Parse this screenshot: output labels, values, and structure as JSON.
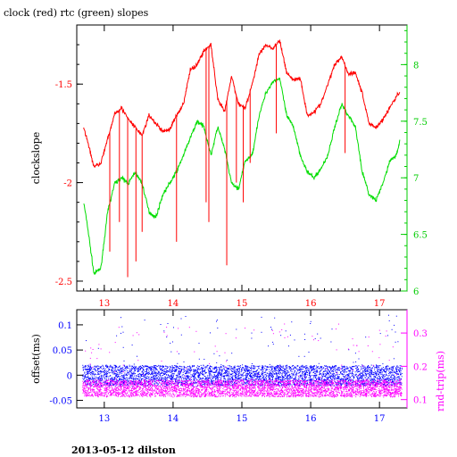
{
  "header": {
    "title": "clock (red) rtc (green) slopes"
  },
  "footer": {
    "caption": "2013-05-12 dilston"
  },
  "colors": {
    "red": "#ff0000",
    "green": "#00dd00",
    "blue": "#0000ff",
    "magenta": "#ff00ff",
    "axis_black": "#000000"
  },
  "chart_data": [
    {
      "type": "line",
      "title": "clock (red) rtc (green) slopes",
      "xlim": [
        12.6,
        17.4
      ],
      "x_ticks": [
        "13",
        "14",
        "15",
        "16",
        "17"
      ],
      "x_tick_color": "#ff0000",
      "ylabel": "clockslope",
      "ylim": [
        -2.55,
        -1.2
      ],
      "y_ticks": [
        "-1.5",
        "-2",
        "-2.5"
      ],
      "y_tick_color": "#ff0000",
      "ylabel_right": "",
      "ylim_right": [
        6.0,
        8.35
      ],
      "y_ticks_right": [
        "8",
        "7.5",
        "7",
        "6.5",
        "6"
      ],
      "y_tick_color_right": "#00cc00",
      "grid": false,
      "series": [
        {
          "name": "clock",
          "color": "#ff0000",
          "axis": "left",
          "x": [
            12.7,
            12.75,
            12.85,
            12.95,
            13.05,
            13.15,
            13.25,
            13.35,
            13.45,
            13.55,
            13.65,
            13.75,
            13.85,
            13.95,
            14.05,
            14.15,
            14.25,
            14.35,
            14.45,
            14.55,
            14.65,
            14.75,
            14.85,
            14.95,
            15.05,
            15.15,
            15.25,
            15.35,
            15.45,
            15.55,
            15.65,
            15.75,
            15.85,
            15.95,
            16.05,
            16.15,
            16.25,
            16.35,
            16.45,
            16.55,
            16.65,
            16.75,
            16.85,
            16.95,
            17.05,
            17.15,
            17.25,
            17.3
          ],
          "values": [
            -1.72,
            -1.78,
            -1.92,
            -1.9,
            -1.78,
            -1.65,
            -1.62,
            -1.68,
            -1.72,
            -1.76,
            -1.66,
            -1.7,
            -1.74,
            -1.73,
            -1.66,
            -1.6,
            -1.43,
            -1.4,
            -1.33,
            -1.3,
            -1.58,
            -1.64,
            -1.46,
            -1.6,
            -1.62,
            -1.5,
            -1.35,
            -1.3,
            -1.32,
            -1.28,
            -1.44,
            -1.48,
            -1.47,
            -1.66,
            -1.64,
            -1.6,
            -1.5,
            -1.4,
            -1.36,
            -1.45,
            -1.44,
            -1.55,
            -1.7,
            -1.72,
            -1.68,
            -1.62,
            -1.56,
            -1.54
          ]
        },
        {
          "name": "rtc",
          "color": "#00dd00",
          "axis": "right",
          "x": [
            12.7,
            12.75,
            12.85,
            12.95,
            13.05,
            13.15,
            13.25,
            13.35,
            13.45,
            13.55,
            13.65,
            13.75,
            13.85,
            13.95,
            14.05,
            14.15,
            14.25,
            14.35,
            14.45,
            14.55,
            14.65,
            14.75,
            14.85,
            14.95,
            15.05,
            15.15,
            15.25,
            15.35,
            15.45,
            15.55,
            15.65,
            15.75,
            15.85,
            15.95,
            16.05,
            16.15,
            16.25,
            16.35,
            16.45,
            16.55,
            16.65,
            16.75,
            16.85,
            16.95,
            17.05,
            17.15,
            17.25,
            17.3
          ],
          "values": [
            6.78,
            6.6,
            6.15,
            6.2,
            6.7,
            6.95,
            7.0,
            6.95,
            7.05,
            6.95,
            6.7,
            6.65,
            6.85,
            6.95,
            7.05,
            7.2,
            7.35,
            7.5,
            7.45,
            7.2,
            7.45,
            7.25,
            6.95,
            6.9,
            7.15,
            7.2,
            7.55,
            7.75,
            7.85,
            7.88,
            7.55,
            7.45,
            7.2,
            7.05,
            7.0,
            7.08,
            7.2,
            7.45,
            7.65,
            7.55,
            7.45,
            7.05,
            6.85,
            6.8,
            6.95,
            7.15,
            7.2,
            7.35
          ]
        }
      ]
    },
    {
      "type": "scatter",
      "xlim": [
        12.6,
        17.4
      ],
      "x_ticks": [
        "13",
        "14",
        "15",
        "16",
        "17"
      ],
      "x_tick_color": "#0000ff",
      "ylabel": "offset(ms)",
      "ylim": [
        -0.065,
        0.13
      ],
      "y_ticks": [
        "0.1",
        "0.05",
        "0",
        "-0.05"
      ],
      "y_tick_color": "#0000ff",
      "ylabel_right": "rnd-trip(ms)",
      "ylim_right": [
        0.075,
        0.37
      ],
      "y_ticks_right": [
        "0.3",
        "0.2",
        "0.1"
      ],
      "y_tick_color_right": "#ff00ff",
      "grid": false,
      "series": [
        {
          "name": "offset",
          "color": "#0000ff",
          "axis": "left",
          "center": 0.0,
          "band": [
            -0.02,
            0.02
          ]
        },
        {
          "name": "rnd-trip",
          "color": "#ff00ff",
          "axis": "right",
          "center": 0.13,
          "band": [
            0.11,
            0.16
          ]
        }
      ]
    }
  ]
}
